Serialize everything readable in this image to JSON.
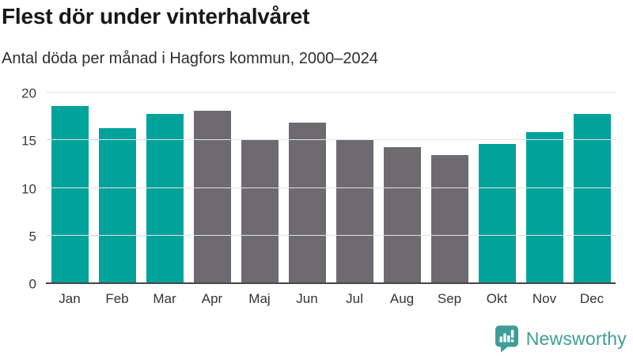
{
  "header": {
    "title": "Flest dör under vinterhalvåret",
    "subtitle": "Antal döda per månad i Hagfors kommun, 2000–2024"
  },
  "chart_data": {
    "type": "bar",
    "title": "Flest dör under vinterhalvåret",
    "subtitle": "Antal döda per månad i Hagfors kommun, 2000–2024",
    "categories": [
      "Jan",
      "Feb",
      "Mar",
      "Apr",
      "Maj",
      "Jun",
      "Jul",
      "Aug",
      "Sep",
      "Okt",
      "Nov",
      "Dec"
    ],
    "values": [
      18.5,
      16.2,
      17.7,
      18.0,
      15.0,
      16.8,
      15.0,
      14.2,
      13.4,
      14.5,
      15.8,
      17.7
    ],
    "bar_colors": [
      "#00a29a",
      "#00a29a",
      "#00a29a",
      "#6d6a70",
      "#6d6a70",
      "#6d6a70",
      "#6d6a70",
      "#6d6a70",
      "#6d6a70",
      "#00a29a",
      "#00a29a",
      "#00a29a"
    ],
    "xlabel": "",
    "ylabel": "",
    "ylim": [
      0,
      20
    ],
    "yticks": [
      0,
      5,
      10,
      15,
      20
    ],
    "grid": true,
    "legend": false,
    "colors": {
      "highlight_teal": "#00a29a",
      "muted_gray": "#6d6a70",
      "gridline": "#e3e3e3",
      "axis_line": "#474747"
    }
  },
  "branding": {
    "logo_text": "Newsworthy",
    "logo_color": "#3f9d97",
    "logo_icon": "newsworthy-speech-bubble-bar-chart-icon"
  }
}
